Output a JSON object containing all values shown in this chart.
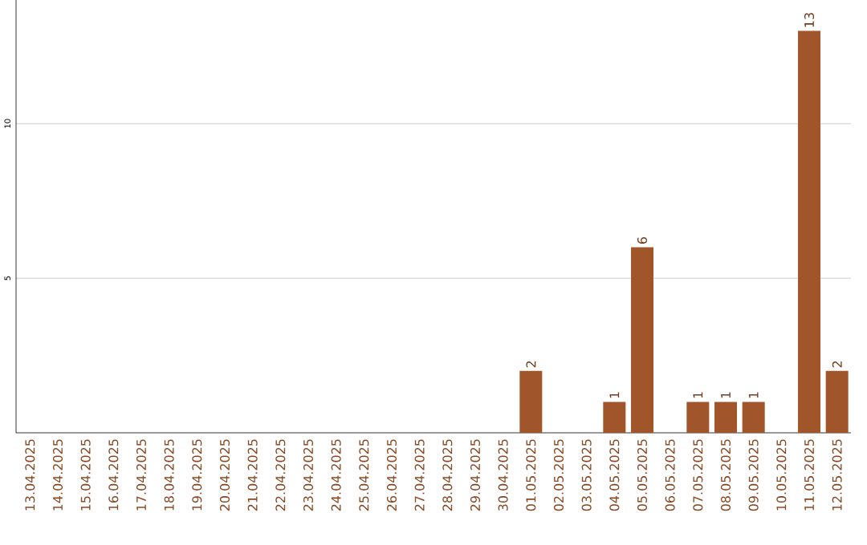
{
  "chart_data": {
    "type": "bar",
    "categories": [
      "13.04.2025",
      "14.04.2025",
      "15.04.2025",
      "16.04.2025",
      "17.04.2025",
      "18.04.2025",
      "19.04.2025",
      "20.04.2025",
      "21.04.2025",
      "22.04.2025",
      "23.04.2025",
      "24.04.2025",
      "25.04.2025",
      "26.04.2025",
      "27.04.2025",
      "28.04.2025",
      "29.04.2025",
      "30.04.2025",
      "01.05.2025",
      "02.05.2025",
      "03.05.2025",
      "04.05.2025",
      "05.05.2025",
      "06.05.2025",
      "07.05.2025",
      "08.05.2025",
      "09.05.2025",
      "10.05.2025",
      "11.05.2025",
      "12.05.2025"
    ],
    "values": [
      0,
      0,
      0,
      0,
      0,
      0,
      0,
      0,
      0,
      0,
      0,
      0,
      0,
      0,
      0,
      0,
      0,
      0,
      2,
      0,
      0,
      1,
      6,
      0,
      1,
      1,
      1,
      0,
      13,
      2
    ],
    "value_labels": [
      null,
      null,
      null,
      null,
      null,
      null,
      null,
      null,
      null,
      null,
      null,
      null,
      null,
      null,
      null,
      null,
      null,
      null,
      "2",
      null,
      null,
      "1",
      "6",
      null,
      "1",
      "1",
      "1",
      null,
      "13",
      "2"
    ],
    "color": "#a0562a",
    "ylim": [
      0,
      14
    ],
    "yticks": [
      5,
      10
    ],
    "grid": "y"
  }
}
